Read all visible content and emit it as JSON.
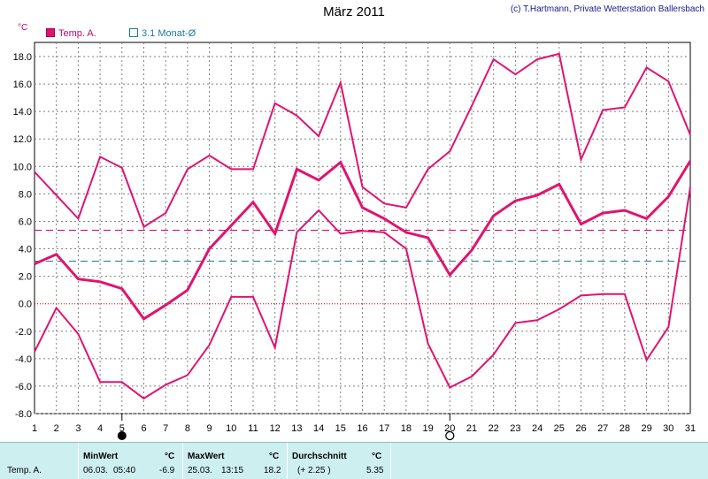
{
  "header": {
    "title": "März 2011",
    "copyright": "(c) T.Hartmann, Private Wetterstation Ballersbach"
  },
  "unit_label": "°C",
  "legend": {
    "temp_label": "Temp. A.",
    "avg_label": "3.1 Monat-Ø"
  },
  "colors": {
    "series": "#e0146e",
    "average_line": "#1a7a9a",
    "grid": "#808080",
    "zero_line": "#cc0000"
  },
  "chart_data": {
    "type": "line",
    "title": "März 2011",
    "ylabel": "°C",
    "xlabel": "",
    "x": [
      1,
      2,
      3,
      4,
      5,
      6,
      7,
      8,
      9,
      10,
      11,
      12,
      13,
      14,
      15,
      16,
      17,
      18,
      19,
      20,
      21,
      22,
      23,
      24,
      25,
      26,
      27,
      28,
      29,
      30,
      31
    ],
    "x_ticks": [
      "1",
      "2",
      "3",
      "4",
      "5",
      "6",
      "7",
      "8",
      "9",
      "10",
      "11",
      "12",
      "13",
      "14",
      "15",
      "16",
      "17",
      "18",
      "19",
      "20",
      "21",
      "22",
      "23",
      "24",
      "25",
      "26",
      "27",
      "28",
      "29",
      "30",
      "31"
    ],
    "y_ticks": [
      "18.0",
      "16.0",
      "14.0",
      "12.0",
      "10.0",
      "8.0",
      "6.0",
      "4.0",
      "2.0",
      "0.0",
      "-2.0",
      "-4.0",
      "-6.0",
      "-8.0"
    ],
    "ylim": [
      -8,
      19
    ],
    "grid": true,
    "series": [
      {
        "role": "max",
        "values": [
          9.6,
          7.9,
          6.2,
          10.7,
          9.9,
          5.6,
          6.6,
          9.8,
          10.8,
          9.8,
          9.8,
          14.6,
          13.7,
          12.2,
          16.1,
          8.5,
          7.3,
          7.0,
          9.8,
          11.1,
          14.4,
          17.8,
          16.7,
          17.8,
          18.2,
          10.5,
          14.1,
          14.3,
          17.2,
          16.2,
          12.3
        ]
      },
      {
        "role": "mean",
        "values": [
          2.9,
          3.6,
          1.8,
          1.6,
          1.1,
          -1.1,
          -0.1,
          1.0,
          4.0,
          5.7,
          7.4,
          5.1,
          9.8,
          9.0,
          10.3,
          7.0,
          6.2,
          5.2,
          4.8,
          2.1,
          3.9,
          6.4,
          7.5,
          7.9,
          8.7,
          5.8,
          6.6,
          6.8,
          6.2,
          7.8,
          10.4
        ]
      },
      {
        "role": "min",
        "values": [
          -3.5,
          -0.3,
          -2.2,
          -5.7,
          -5.7,
          -6.9,
          -5.9,
          -5.2,
          -3.0,
          0.5,
          0.5,
          -3.2,
          5.2,
          6.8,
          5.1,
          5.3,
          5.2,
          4.0,
          -2.9,
          -6.1,
          -5.3,
          -3.7,
          -1.4,
          -1.2,
          -0.4,
          0.6,
          0.7,
          0.7,
          -4.1,
          -1.7,
          8.5
        ]
      }
    ],
    "reference_lines": [
      {
        "label": "Temp. A.",
        "value": 5.35,
        "style": "dashed",
        "color": "#cc0066"
      },
      {
        "label": "3.1 Monat-Ø",
        "value": 3.1,
        "style": "dashed",
        "color": "#1a7a9a"
      }
    ],
    "moon_phases": [
      {
        "day": 5,
        "phase": "new-moon"
      },
      {
        "day": 20,
        "phase": "full-moon"
      }
    ]
  },
  "stats": {
    "row_label": "Temp. A.",
    "min": {
      "header": "MinWert",
      "unit": "°C",
      "date": "06.03.",
      "time": "05:40",
      "value": "-6.9"
    },
    "max": {
      "header": "MaxWert",
      "unit": "°C",
      "date": "25.03.",
      "time": "13:15",
      "value": "18.2"
    },
    "avg": {
      "header": "Durchschnitt",
      "unit": "°C",
      "delta": "(+ 2.25 )",
      "value": "5.35"
    }
  }
}
